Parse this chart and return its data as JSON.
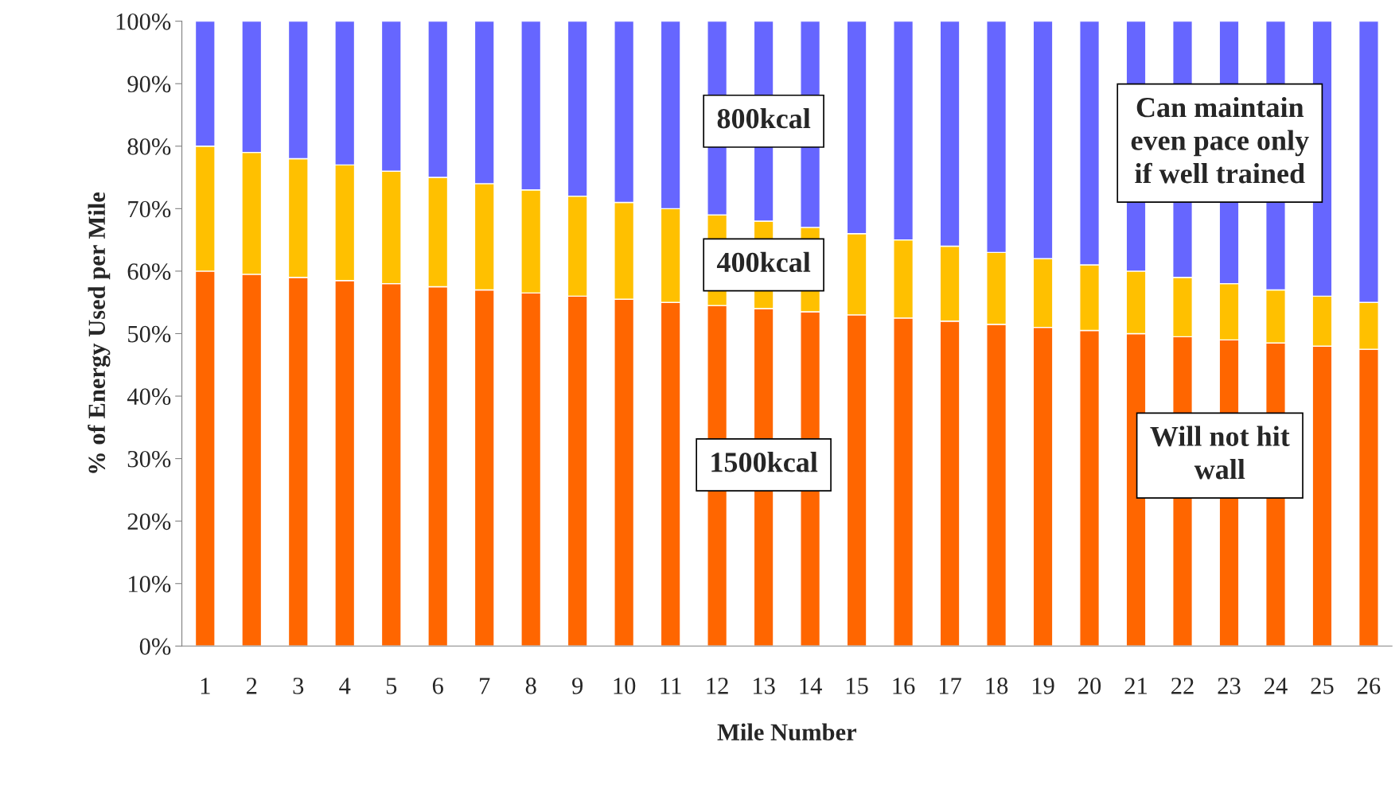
{
  "chart_data": {
    "type": "bar",
    "stacked": true,
    "xlabel": "Mile Number",
    "ylabel": "% of Energy Used per Mile",
    "categories": [
      "1",
      "2",
      "3",
      "4",
      "5",
      "6",
      "7",
      "8",
      "9",
      "10",
      "11",
      "12",
      "13",
      "14",
      "15",
      "16",
      "17",
      "18",
      "19",
      "20",
      "21",
      "22",
      "23",
      "24",
      "25",
      "26"
    ],
    "series": [
      {
        "color": "#ff6600",
        "values": [
          60,
          59.5,
          59,
          58.5,
          58,
          57.5,
          57,
          56.5,
          56,
          55.5,
          55,
          54.5,
          54,
          53.5,
          53,
          52.5,
          52,
          51.5,
          51,
          50.5,
          50,
          49.5,
          49,
          48.5,
          48,
          47.5
        ]
      },
      {
        "color": "#ffc000",
        "values": [
          20,
          19.5,
          19,
          18.5,
          18,
          17.5,
          17,
          16.5,
          16,
          15.5,
          15,
          14.5,
          14,
          13.5,
          13,
          12.5,
          12,
          11.5,
          11,
          10.5,
          10,
          9.5,
          9,
          8.5,
          8,
          7.5
        ]
      },
      {
        "color": "#6666ff",
        "values": [
          20,
          21,
          22,
          23,
          24,
          25,
          26,
          27,
          28,
          29,
          30,
          31,
          32,
          33,
          34,
          35,
          36,
          37,
          38,
          39,
          40,
          41,
          42,
          43,
          44,
          45
        ]
      }
    ],
    "ylim": [
      0,
      100
    ],
    "yticks": [
      {
        "value": 0,
        "label": "0%"
      },
      {
        "value": 10,
        "label": "10%"
      },
      {
        "value": 20,
        "label": "20%"
      },
      {
        "value": 30,
        "label": "30%"
      },
      {
        "value": 40,
        "label": "40%"
      },
      {
        "value": 50,
        "label": "50%"
      },
      {
        "value": 60,
        "label": "60%"
      },
      {
        "value": 70,
        "label": "70%"
      },
      {
        "value": 80,
        "label": "80%"
      },
      {
        "value": 90,
        "label": "90%"
      },
      {
        "value": 100,
        "label": "100%"
      }
    ],
    "grid": false,
    "legend": false,
    "annotations": [
      "800kcal",
      "400kcal",
      "1500kcal",
      "Can maintain\neven pace only\nif well trained",
      "Will not hit\nwall"
    ]
  }
}
